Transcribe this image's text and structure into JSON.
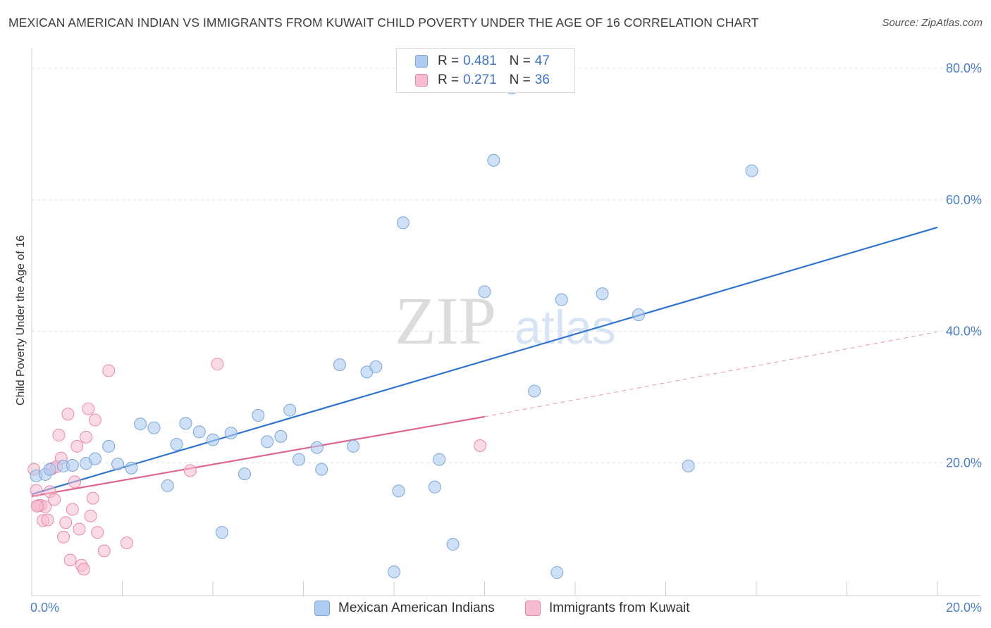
{
  "title": "MEXICAN AMERICAN INDIAN VS IMMIGRANTS FROM KUWAIT CHILD POVERTY UNDER THE AGE OF 16 CORRELATION CHART",
  "source": "Source: ZipAtlas.com",
  "watermark": {
    "zip": "ZIP",
    "atlas": "atlas"
  },
  "legend": {
    "series1": {
      "r_label": "R =",
      "r_value": "0.481",
      "n_label": "N =",
      "n_value": "47"
    },
    "series2": {
      "r_label": "R =",
      "r_value": "0.271",
      "n_label": "N =",
      "n_value": "36"
    }
  },
  "bottom_legend": {
    "series1": "Mexican American Indians",
    "series2": "Immigrants from Kuwait"
  },
  "colors": {
    "blue_fill": "#aecbf0",
    "blue_stroke": "#7aa6db",
    "blue_line": "#2f74d0",
    "pink_fill": "#f6bccd",
    "pink_stroke": "#e98aa8",
    "pink_line": "#e0648f",
    "tick_text": "#4a7fc9",
    "grid": "#dedede"
  },
  "chart_data": {
    "type": "scatter",
    "title": "MEXICAN AMERICAN INDIAN VS IMMIGRANTS FROM KUWAIT CHILD POVERTY UNDER THE AGE OF 16 CORRELATION CHART",
    "xlabel": "",
    "ylabel": "Child Poverty Under the Age of 16",
    "xlim": [
      0,
      20
    ],
    "ylim": [
      0,
      80
    ],
    "x_tick_labels": [
      "0.0%",
      "20.0%"
    ],
    "y_tick_labels": [
      "20.0%",
      "40.0%",
      "60.0%",
      "80.0%"
    ],
    "y_ticks": [
      20,
      40,
      60,
      80
    ],
    "grid": true,
    "legend_position": "top-center",
    "series": [
      {
        "name": "Mexican American Indians",
        "R": 0.481,
        "N": 47,
        "color": "#aecbf0",
        "trend": {
          "x": [
            0,
            20
          ],
          "y": [
            15.2,
            55.8
          ],
          "style": "solid"
        },
        "points": [
          [
            0.1,
            18.0
          ],
          [
            0.3,
            18.2
          ],
          [
            0.4,
            19.0
          ],
          [
            0.7,
            19.5
          ],
          [
            0.9,
            19.6
          ],
          [
            1.2,
            19.9
          ],
          [
            1.4,
            20.6
          ],
          [
            1.7,
            22.5
          ],
          [
            1.9,
            19.8
          ],
          [
            2.2,
            19.2
          ],
          [
            2.4,
            25.9
          ],
          [
            2.7,
            25.3
          ],
          [
            3.0,
            16.5
          ],
          [
            3.2,
            22.8
          ],
          [
            3.4,
            26.0
          ],
          [
            3.7,
            24.7
          ],
          [
            4.0,
            23.5
          ],
          [
            4.2,
            9.4
          ],
          [
            4.4,
            24.5
          ],
          [
            4.7,
            18.3
          ],
          [
            5.0,
            27.2
          ],
          [
            5.2,
            23.2
          ],
          [
            5.5,
            24.0
          ],
          [
            5.7,
            28.0
          ],
          [
            5.9,
            20.5
          ],
          [
            6.3,
            22.3
          ],
          [
            6.4,
            19.0
          ],
          [
            6.8,
            34.9
          ],
          [
            7.1,
            22.5
          ],
          [
            7.4,
            33.8
          ],
          [
            7.6,
            34.6
          ],
          [
            8.0,
            3.4
          ],
          [
            8.1,
            15.7
          ],
          [
            8.2,
            56.5
          ],
          [
            8.9,
            16.3
          ],
          [
            9.0,
            20.5
          ],
          [
            9.3,
            7.6
          ],
          [
            10.0,
            46.0
          ],
          [
            10.2,
            66.0
          ],
          [
            10.6,
            77.0
          ],
          [
            11.1,
            30.9
          ],
          [
            11.6,
            3.3
          ],
          [
            11.7,
            44.8
          ],
          [
            12.6,
            45.7
          ],
          [
            13.4,
            42.5
          ],
          [
            14.5,
            19.5
          ],
          [
            15.9,
            64.4
          ]
        ]
      },
      {
        "name": "Immigrants from Kuwait",
        "R": 0.271,
        "N": 36,
        "color": "#f6bccd",
        "trend": {
          "x": [
            0,
            10
          ],
          "y": [
            14.9,
            27.0
          ],
          "style": "solid",
          "dashed_extension": {
            "x": [
              10,
              20
            ],
            "y": [
              27.0,
              39.9
            ]
          }
        },
        "points": [
          [
            0.05,
            19.0
          ],
          [
            0.1,
            15.8
          ],
          [
            0.15,
            13.5
          ],
          [
            0.2,
            13.5
          ],
          [
            0.25,
            11.2
          ],
          [
            0.3,
            13.3
          ],
          [
            0.35,
            11.3
          ],
          [
            0.4,
            15.6
          ],
          [
            0.45,
            19.1
          ],
          [
            0.5,
            14.4
          ],
          [
            0.55,
            19.4
          ],
          [
            0.6,
            24.2
          ],
          [
            0.65,
            20.7
          ],
          [
            0.7,
            8.7
          ],
          [
            0.75,
            10.9
          ],
          [
            0.8,
            27.4
          ],
          [
            0.85,
            5.2
          ],
          [
            0.9,
            12.9
          ],
          [
            0.95,
            17.1
          ],
          [
            1.0,
            22.5
          ],
          [
            1.05,
            9.9
          ],
          [
            1.1,
            4.4
          ],
          [
            1.15,
            3.8
          ],
          [
            1.2,
            23.9
          ],
          [
            1.25,
            28.2
          ],
          [
            1.3,
            11.9
          ],
          [
            1.35,
            14.6
          ],
          [
            1.4,
            26.5
          ],
          [
            1.45,
            9.4
          ],
          [
            1.6,
            6.6
          ],
          [
            1.7,
            34.0
          ],
          [
            2.1,
            7.8
          ],
          [
            3.5,
            18.8
          ],
          [
            4.1,
            35.0
          ],
          [
            9.9,
            22.6
          ],
          [
            0.12,
            13.4
          ]
        ]
      }
    ]
  }
}
